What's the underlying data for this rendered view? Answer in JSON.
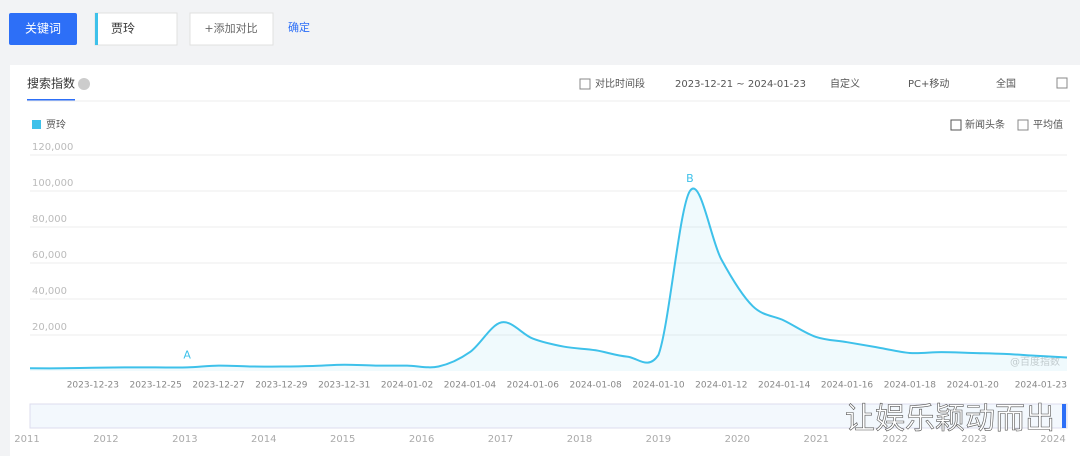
{
  "ui": {
    "keyword_button": "关键词",
    "keyword_input": "贾玲",
    "add_compare": "+添加对比",
    "confirm": "确定",
    "tab": "搜索指数",
    "compare_period": "对比时间段",
    "date_range": "2023-12-21 ~ 2024-01-23",
    "custom": "自定义",
    "device": "PC+移动",
    "region": "全国",
    "news_check": "新闻头条",
    "average_check": "平均值",
    "source_watermark": "@百度指数",
    "timeline_years": [
      "2011",
      "2012",
      "2013",
      "2014",
      "2015",
      "2016",
      "2017",
      "2018",
      "2019",
      "2020",
      "2021",
      "2022",
      "2023",
      "2024"
    ],
    "overlay_text": "让娱乐颖动而出"
  },
  "chart_data": {
    "type": "line",
    "categories": [
      null,
      null,
      "2023-12-23",
      null,
      "2023-12-25",
      null,
      "2023-12-27",
      null,
      "2023-12-29",
      null,
      "2023-12-31",
      null,
      "2024-01-02",
      null,
      "2024-01-04",
      null,
      "2024-01-06",
      null,
      "2024-01-08",
      null,
      "2024-01-10",
      null,
      "2024-01-12",
      null,
      "2024-01-14",
      null,
      "2024-01-16",
      null,
      "2024-01-18",
      null,
      "2024-01-20",
      null,
      null,
      "2024-01-23"
    ],
    "series": [
      {
        "name": "贾玲",
        "color": "#3ec1ea",
        "values": [
          1500,
          1500,
          1800,
          2000,
          2000,
          2000,
          3000,
          2500,
          2500,
          2800,
          3500,
          3000,
          3000,
          2500,
          10500,
          27000,
          18000,
          13500,
          11500,
          8000,
          9000,
          100000,
          62000,
          36000,
          28000,
          19000,
          16000,
          13000,
          10000,
          10500,
          10000,
          9500,
          8500,
          7500
        ]
      }
    ],
    "annotations": [
      {
        "label": "A",
        "index": 5
      },
      {
        "label": "B",
        "index": 21
      }
    ],
    "ylim": [
      0,
      120000
    ],
    "yticks": [
      {
        "value": 20000,
        "label": "20,000"
      },
      {
        "value": 40000,
        "label": "40,000"
      },
      {
        "value": 60000,
        "label": "60,000"
      },
      {
        "value": 80000,
        "label": "80,000"
      },
      {
        "value": 100000,
        "label": "100,000"
      },
      {
        "value": 120000,
        "label": "120,000"
      }
    ],
    "grid": true
  }
}
